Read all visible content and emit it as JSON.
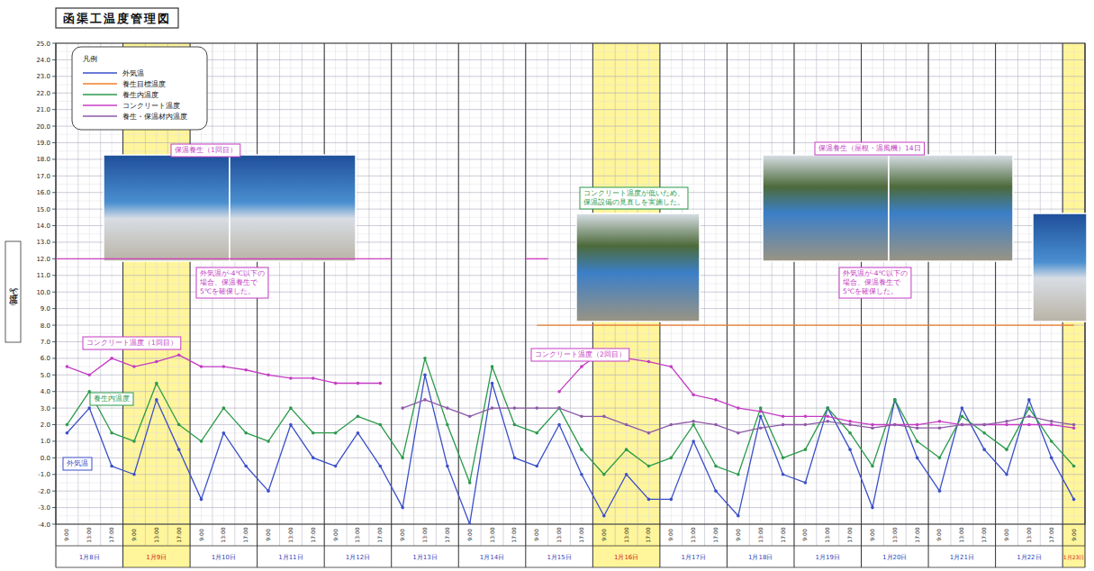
{
  "chart_data": {
    "type": "line",
    "title": "函渠工温度管理図",
    "y_label": "温度（℃）",
    "legend_title": "凡例",
    "legend": "upper left",
    "grid": true,
    "marker": "circle",
    "categories": [
      "9:00",
      "13:00",
      "17:00",
      "9:00",
      "13:00",
      "17:00",
      "9:00",
      "13:00",
      "17:00",
      "9:00",
      "13:00",
      "17:00",
      "9:00",
      "13:00",
      "17:00",
      "9:00",
      "13:00",
      "17:00",
      "9:00",
      "13:00",
      "17:00",
      "9:00",
      "13:00",
      "17:00",
      "9:00",
      "13:00",
      "17:00",
      "9:00",
      "13:00",
      "17:00",
      "9:00",
      "13:00",
      "17:00",
      "9:00",
      "13:00",
      "17:00",
      "9:00",
      "13:00",
      "17:00",
      "9:00",
      "13:00",
      "17:00",
      "9:00",
      "13:00",
      "17:00",
      "9:00"
    ],
    "x_groups": [
      {
        "label": "1月8日",
        "span": 3,
        "highlight": false
      },
      {
        "label": "1月9日",
        "span": 3,
        "highlight": true
      },
      {
        "label": "1月10日",
        "span": 3,
        "highlight": false
      },
      {
        "label": "1月11日",
        "span": 3,
        "highlight": false
      },
      {
        "label": "1月12日",
        "span": 3,
        "highlight": false
      },
      {
        "label": "1月13日",
        "span": 3,
        "highlight": false
      },
      {
        "label": "1月14日",
        "span": 3,
        "highlight": false
      },
      {
        "label": "1月15日",
        "span": 3,
        "highlight": false
      },
      {
        "label": "1月16日",
        "span": 3,
        "highlight": true
      },
      {
        "label": "1月17日",
        "span": 3,
        "highlight": false
      },
      {
        "label": "1月18日",
        "span": 3,
        "highlight": false
      },
      {
        "label": "1月19日",
        "span": 3,
        "highlight": false
      },
      {
        "label": "1月20日",
        "span": 3,
        "highlight": false
      },
      {
        "label": "1月21日",
        "span": 3,
        "highlight": false
      },
      {
        "label": "1月22日",
        "span": 3,
        "highlight": false
      },
      {
        "label": "1月23日",
        "span": 1,
        "highlight": true
      }
    ],
    "series": [
      {
        "name": "外気温",
        "color": "#3a4fc8",
        "values": [
          1.5,
          3.0,
          -0.5,
          -1.0,
          3.5,
          0.5,
          -2.5,
          1.5,
          -0.5,
          -2.0,
          2.0,
          0.0,
          -0.5,
          1.5,
          -0.5,
          -3.0,
          5.0,
          -0.5,
          -4.0,
          4.5,
          0.0,
          -0.5,
          2.0,
          -1.0,
          -3.5,
          -1.0,
          -2.5,
          -2.5,
          1.0,
          -2.0,
          -3.5,
          2.5,
          -1.0,
          -1.5,
          3.0,
          0.5,
          -3.0,
          3.5,
          0.0,
          -2.0,
          3.0,
          0.5,
          -1.0,
          3.5,
          0.0,
          -2.5
        ]
      },
      {
        "name": "養生目標温度",
        "color": "#f07f2a",
        "marker": "none",
        "values": [
          null,
          null,
          null,
          null,
          null,
          null,
          null,
          null,
          null,
          null,
          null,
          null,
          null,
          null,
          null,
          null,
          null,
          null,
          null,
          null,
          null,
          8.0,
          8.0,
          8.0,
          8.0,
          8.0,
          8.0,
          8.0,
          8.0,
          8.0,
          8.0,
          8.0,
          8.0,
          8.0,
          8.0,
          8.0,
          8.0,
          8.0,
          8.0,
          8.0,
          8.0,
          8.0,
          8.0,
          8.0,
          8.0,
          8.0
        ]
      },
      {
        "name": "養生内温度",
        "color": "#2a9a4a",
        "values": [
          2.0,
          4.0,
          1.5,
          1.0,
          4.5,
          2.0,
          1.0,
          3.0,
          1.5,
          1.0,
          3.0,
          1.5,
          1.5,
          2.5,
          2.0,
          0.0,
          6.0,
          2.0,
          -1.5,
          5.5,
          2.0,
          1.5,
          3.0,
          0.5,
          -1.0,
          0.5,
          -0.5,
          0.0,
          2.0,
          -0.5,
          -1.0,
          3.0,
          0.0,
          0.5,
          3.0,
          1.5,
          -0.5,
          3.5,
          1.0,
          0.0,
          2.5,
          1.5,
          0.5,
          3.0,
          1.0,
          -0.5
        ]
      },
      {
        "name": "コンクリート温度",
        "color": "#c43cc4",
        "values": [
          5.5,
          5.0,
          6.0,
          5.5,
          5.8,
          6.2,
          5.5,
          5.5,
          5.3,
          5.0,
          4.8,
          4.8,
          4.5,
          4.5,
          4.5,
          null,
          null,
          null,
          null,
          null,
          null,
          null,
          4.0,
          5.5,
          6.5,
          6.0,
          5.8,
          5.5,
          3.8,
          3.5,
          3.0,
          2.8,
          2.5,
          2.5,
          2.5,
          2.2,
          2.0,
          2.0,
          2.0,
          2.2,
          2.0,
          2.0,
          2.0,
          2.0,
          2.0,
          1.8
        ]
      },
      {
        "name": "養生・保温材内温度",
        "color": "#8e5aa8",
        "values": [
          null,
          null,
          null,
          null,
          null,
          null,
          null,
          null,
          null,
          null,
          null,
          null,
          null,
          null,
          null,
          3.0,
          3.5,
          3.0,
          2.5,
          3.0,
          3.0,
          3.0,
          3.0,
          2.5,
          2.5,
          2.0,
          1.5,
          2.0,
          2.2,
          2.0,
          1.5,
          1.8,
          2.0,
          2.0,
          2.2,
          2.0,
          1.8,
          2.0,
          1.8,
          1.8,
          2.0,
          2.0,
          2.2,
          2.5,
          2.2,
          2.0
        ]
      }
    ],
    "reference_lines": [
      {
        "value": 12.0,
        "start": 0,
        "end": 14,
        "color": "#d040c0"
      },
      {
        "value": 12.0,
        "start": 21,
        "end": 21,
        "color": "#d040c0"
      }
    ],
    "annotations": [
      {
        "lines": [
          "保温養生（1回目）"
        ],
        "color": "#c43cc4"
      },
      {
        "lines": [
          "外気温が-4℃以下の",
          "場合、保温養生で",
          "5℃を確保した。"
        ],
        "color": "#c43cc4"
      },
      {
        "lines": [
          "コンクリート温度が低いため、",
          "保温設備の見直しを実施した。"
        ],
        "color": "#2a9a4a"
      },
      {
        "lines": [
          "保温養生（屋根・温風機）14日"
        ],
        "color": "#c43cc4"
      },
      {
        "lines": [
          "外気温が-4℃以下の",
          "場合、保温養生で",
          "5℃を確保した。"
        ],
        "color": "#c43cc4"
      },
      {
        "lines": [
          "コンクリート温度（1回目）"
        ],
        "color": "#c43cc4"
      },
      {
        "lines": [
          "養生内温度"
        ],
        "color": "#2a9a4a"
      },
      {
        "lines": [
          "外気温"
        ],
        "color": "#3a4fc8"
      },
      {
        "lines": [
          "コンクリート温度（2回目）"
        ],
        "color": "#c43cc4"
      }
    ],
    "ylim": [
      -4,
      25
    ],
    "yticks": [
      {
        "value": -4,
        "label": "-4.0"
      },
      {
        "value": -3,
        "label": "-3.0"
      },
      {
        "value": -2,
        "label": "-2.0"
      },
      {
        "value": -1,
        "label": "-1.0"
      },
      {
        "value": 0,
        "label": "0.0"
      },
      {
        "value": 1,
        "label": "1.0"
      },
      {
        "value": 2,
        "label": "2.0"
      },
      {
        "value": 3,
        "label": "3.0"
      },
      {
        "value": 4,
        "label": "4.0"
      },
      {
        "value": 5,
        "label": "5.0"
      },
      {
        "value": 6,
        "label": "6.0"
      },
      {
        "value": 7,
        "label": "7.0"
      },
      {
        "value": 8,
        "label": "8.0"
      },
      {
        "value": 9,
        "label": "9.0"
      },
      {
        "value": 10,
        "label": "10.0"
      },
      {
        "value": 11,
        "label": "11.0"
      },
      {
        "value": 12,
        "label": "12.0"
      },
      {
        "value": 13,
        "label": "13.0"
      },
      {
        "value": 14,
        "label": "14.0"
      },
      {
        "value": 15,
        "label": "15.0"
      },
      {
        "value": 16,
        "label": "16.0"
      },
      {
        "value": 17,
        "label": "17.0"
      },
      {
        "value": 18,
        "label": "18.0"
      },
      {
        "value": 19,
        "label": "19.0"
      },
      {
        "value": 20,
        "label": "20.0"
      },
      {
        "value": 21,
        "label": "21.0"
      },
      {
        "value": 22,
        "label": "22.0"
      },
      {
        "value": 23,
        "label": "23.0"
      },
      {
        "value": 24,
        "label": "24.0"
      },
      {
        "value": 25,
        "label": "25.0"
      }
    ]
  }
}
